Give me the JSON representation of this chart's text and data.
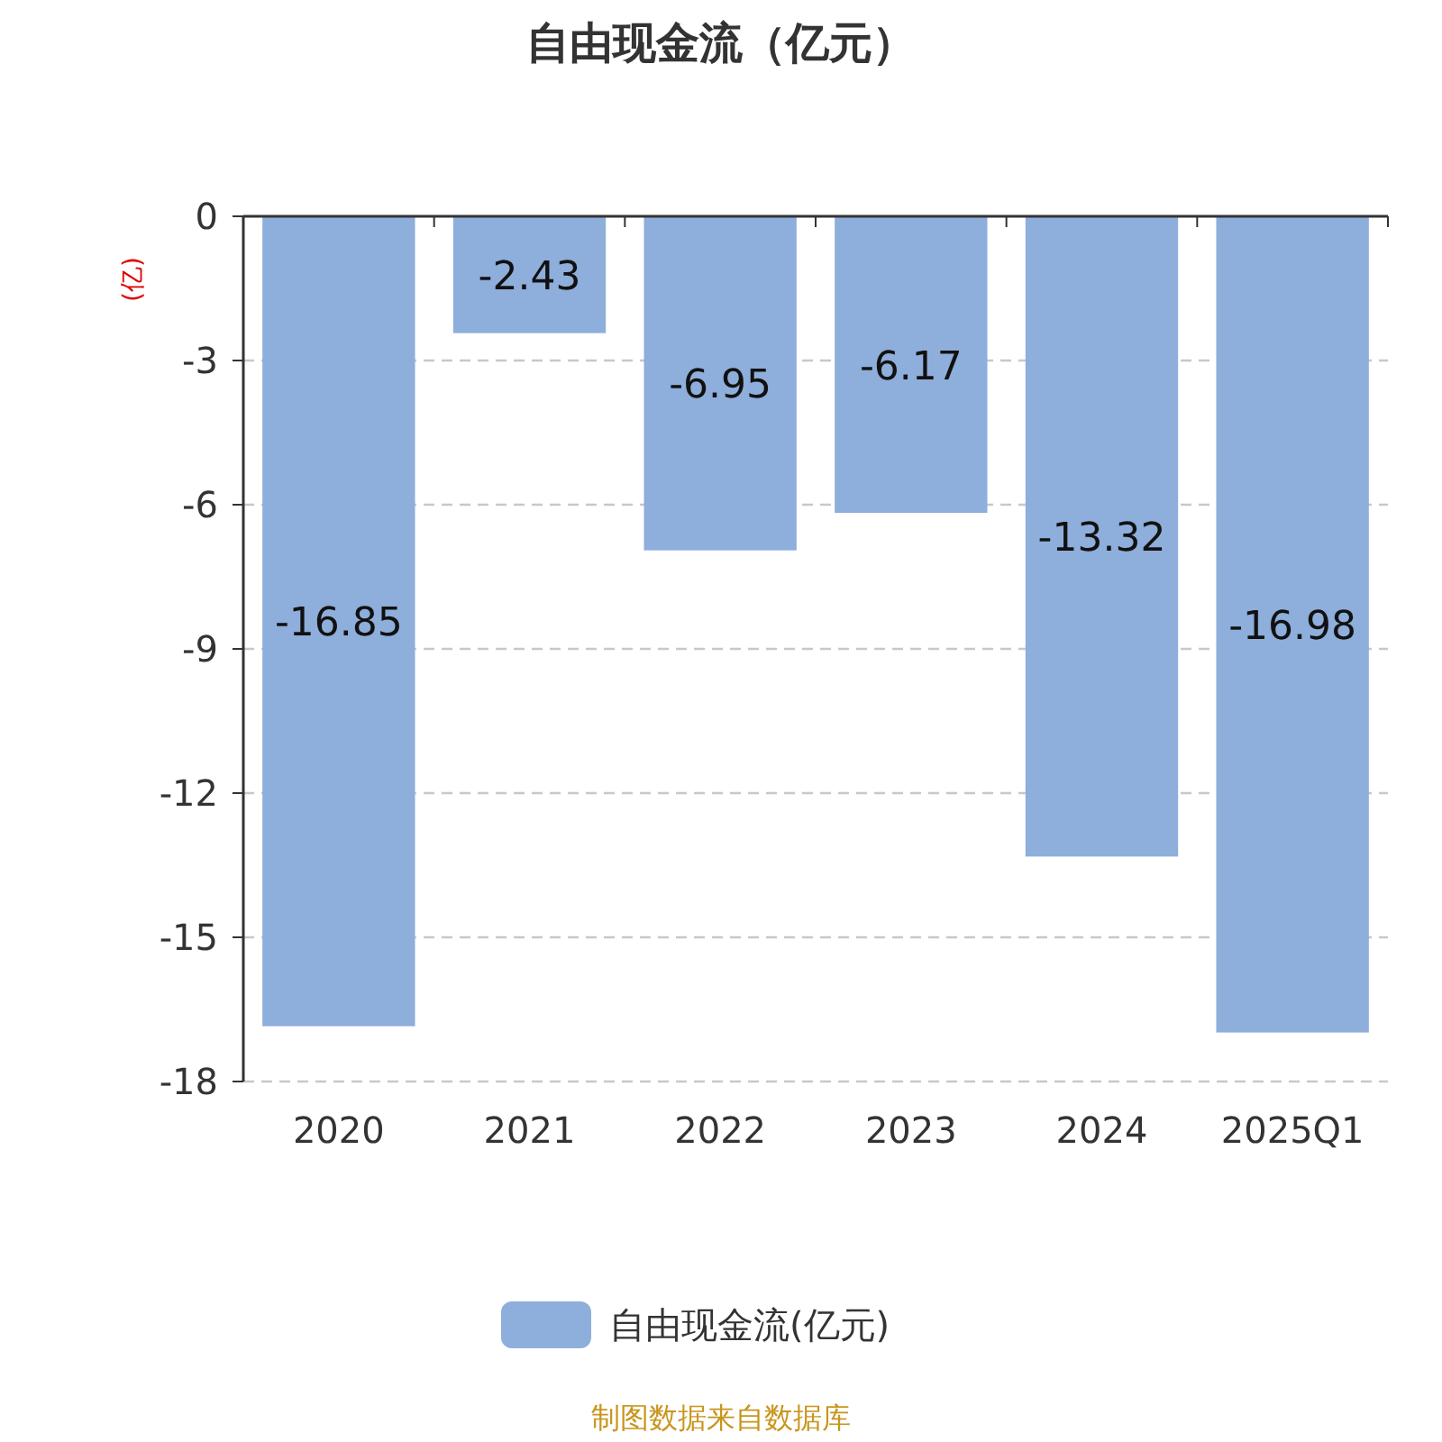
{
  "chart_data": {
    "type": "bar",
    "title": "自由现金流（亿元）",
    "ylabel": "(亿)",
    "categories": [
      "2020",
      "2021",
      "2022",
      "2023",
      "2024",
      "2025Q1"
    ],
    "series": [
      {
        "name": "自由现金流(亿元)",
        "color": "#8eaedb",
        "values": [
          -16.85,
          -2.43,
          -6.95,
          -6.17,
          -13.32,
          -16.98
        ]
      }
    ],
    "ylim": [
      -18,
      0
    ],
    "yticks": [
      0,
      -3,
      -6,
      -9,
      -12,
      -15,
      -18
    ],
    "grid": "y",
    "legend": "bottom",
    "data_labels": true,
    "annotations": [
      "制图数据来自数据库"
    ]
  }
}
